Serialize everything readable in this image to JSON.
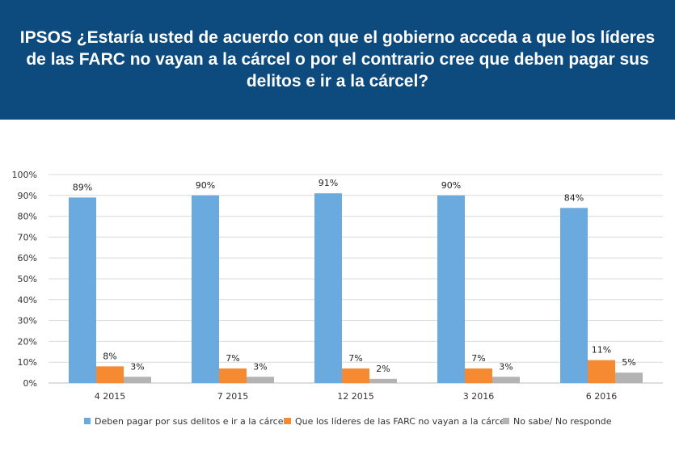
{
  "header": {
    "title": "IPSOS  ¿Estaría usted de acuerdo con que el gobierno acceda a que los líderes de las FARC no vayan a la cárcel o por el contrario cree que deben pagar sus delitos e ir a la cárcel?"
  },
  "chart_data": {
    "type": "bar",
    "categories": [
      "4 2015",
      "7 2015",
      "12 2015",
      "3 2016",
      "6  2016"
    ],
    "series": [
      {
        "name": "Deben pagar por sus delitos e ir a la cárcel",
        "values": [
          89,
          90,
          91,
          90,
          84
        ],
        "color": "#6aaadf"
      },
      {
        "name": "Que los líderes de las FARC no vayan a la cárcel",
        "values": [
          8,
          7,
          7,
          7,
          11
        ],
        "color": "#f58a32"
      },
      {
        "name": "No sabe/ No responde",
        "values": [
          3,
          3,
          2,
          3,
          5
        ],
        "color": "#b3b3b3"
      }
    ],
    "yticks": [
      "0%",
      "10%",
      "20%",
      "30%",
      "40%",
      "50%",
      "60%",
      "70%",
      "80%",
      "90%",
      "100%"
    ],
    "ylim": [
      0,
      100
    ],
    "value_suffix": "%",
    "grid": true,
    "legend_position": "bottom"
  }
}
